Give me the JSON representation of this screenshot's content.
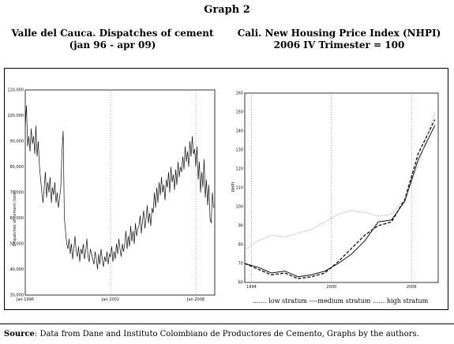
{
  "header": {
    "graph_title": "Graph 2"
  },
  "left": {
    "title_line1": "Valle del Cauca. Dispatches of cement",
    "title_line2": "(jan 96 - apr 09)"
  },
  "right": {
    "title_line1": "Cali. New Housing Price Index (NHPI)",
    "title_line2": "2006 IV Trimester = 100"
  },
  "legend": {
    "low": "low stratum",
    "medium": "medium stratum",
    "high": "high stratum"
  },
  "source": {
    "label": "Source",
    "text": ": Data from Dane and Instituto Colombiano de Productores de Cemento, Graphs by the authors."
  },
  "chart_data": [
    {
      "type": "line",
      "title": "Valle del Cauca. Dispatches of cement",
      "ylabel": "Dispatches of cement (tons)",
      "ylim": [
        30000,
        110000
      ],
      "yticks": [
        "30,000",
        "40,000",
        "50,000",
        "60,000",
        "70,000",
        "80,000",
        "90,000",
        "100,000",
        "110,000"
      ],
      "xticks": [
        "Jan 1996",
        "Jan 2002",
        "Jan 2008"
      ],
      "xlim": [
        1996.0,
        2009.33
      ],
      "grid": "vertical dotted at tick positions",
      "series": [
        {
          "x_start": 1996.0,
          "x_step": 0.0833,
          "values": [
            96000,
            104000,
            88000,
            92000,
            86000,
            95000,
            89000,
            92000,
            85000,
            96000,
            84000,
            90000,
            80000,
            75000,
            70000,
            66000,
            72000,
            78000,
            68000,
            74000,
            70000,
            76000,
            66000,
            72000,
            69000,
            74000,
            66000,
            70000,
            64000,
            68000,
            72000,
            86000,
            94000,
            60000,
            55000,
            50000,
            48000,
            52000,
            46000,
            50000,
            44000,
            48000,
            53000,
            47000,
            45000,
            49000,
            43000,
            48000,
            46000,
            50000,
            44000,
            47000,
            52000,
            45000,
            43000,
            48000,
            46000,
            44000,
            42000,
            47000,
            44000,
            40000,
            46000,
            42000,
            48000,
            44000,
            41000,
            45000,
            43000,
            47000,
            42000,
            46000,
            45000,
            49000,
            43000,
            47000,
            44000,
            50000,
            46000,
            52000,
            48000,
            45000,
            50000,
            47000,
            50000,
            55000,
            48000,
            53000,
            49000,
            57000,
            51000,
            55000,
            50000,
            58000,
            53000,
            56000,
            57000,
            61000,
            54000,
            59000,
            63000,
            56000,
            60000,
            65000,
            58000,
            62000,
            57000,
            64000,
            62000,
            70000,
            64000,
            72000,
            66000,
            74000,
            69000,
            76000,
            70000,
            73000,
            67000,
            75000,
            72000,
            78000,
            70000,
            80000,
            74000,
            77000,
            71000,
            79000,
            73000,
            82000,
            76000,
            80000,
            78000,
            84000,
            79000,
            88000,
            82000,
            86000,
            80000,
            90000,
            84000,
            92000,
            85000,
            87000,
            80000,
            88000,
            75000,
            82000,
            70000,
            78000,
            72000,
            83000,
            68000,
            75000,
            65000,
            73000,
            60000,
            58000,
            70000,
            64000
          ]
        }
      ]
    },
    {
      "type": "line",
      "title": "Cali. New Housing Price Index (NHPI)",
      "ylabel": "NHPI",
      "ylim": [
        60,
        160
      ],
      "yticks": [
        "60",
        "70",
        "80",
        "90",
        "100",
        "110",
        "120",
        "130",
        "140",
        "150",
        "160"
      ],
      "xticks": [
        "1994",
        "2000",
        "2006"
      ],
      "xlim": [
        1994,
        2008.5
      ],
      "grid": "vertical dotted at tick positions",
      "series": [
        {
          "name": "low stratum",
          "x": [
            1994,
            1995,
            1996,
            1997,
            1998,
            1999,
            2000,
            2001,
            2002,
            2003,
            2004,
            2005,
            2006,
            2007,
            2008.25
          ],
          "values": [
            70,
            68,
            65,
            66,
            63,
            64,
            66,
            70,
            75,
            82,
            92,
            93,
            103,
            125,
            143
          ]
        },
        {
          "name": "medium stratum",
          "x": [
            1994,
            1995,
            1996,
            1997,
            1998,
            1999,
            2000,
            2001,
            2002,
            2003,
            2004,
            2005,
            2006,
            2007,
            2008.25
          ],
          "values": [
            70,
            67,
            64,
            65,
            62,
            63,
            65,
            71,
            78,
            85,
            90,
            92,
            104,
            128,
            146
          ]
        },
        {
          "name": "high stratum",
          "x": [
            1994,
            1995,
            1996,
            1997,
            1998,
            1999,
            2000,
            2001,
            2002,
            2003,
            2004,
            2005,
            2006,
            2007,
            2008.25
          ],
          "values": [
            77,
            82,
            85,
            84,
            86,
            88,
            92,
            96,
            98,
            97,
            95,
            96,
            104,
            122,
            150
          ]
        }
      ]
    }
  ]
}
